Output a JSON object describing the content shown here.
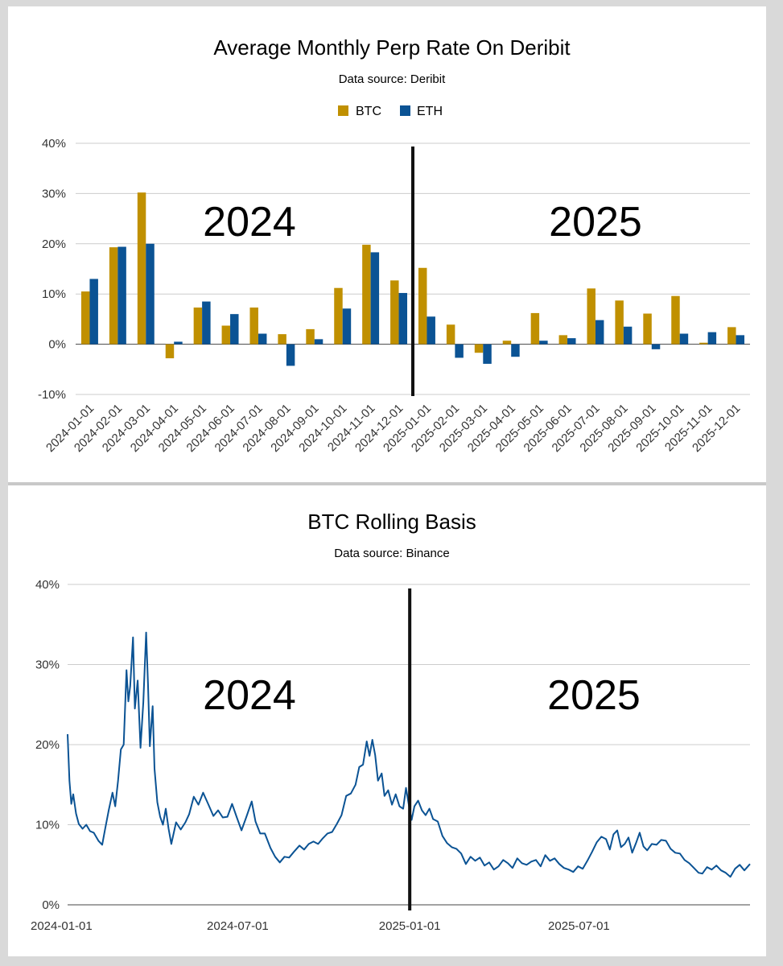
{
  "colors": {
    "btc": "#c09000",
    "eth": "#0b5394",
    "grid": "#cccccc",
    "divider": "#111111"
  },
  "chart_data": [
    {
      "type": "bar",
      "title": "Average Monthly Perp Rate On Deribit",
      "subtitle": "Data source: Deribit",
      "categories": [
        "2024-01-01",
        "2024-02-01",
        "2024-03-01",
        "2024-04-01",
        "2024-05-01",
        "2024-06-01",
        "2024-07-01",
        "2024-08-01",
        "2024-09-01",
        "2024-10-01",
        "2024-11-01",
        "2024-12-01",
        "2025-01-01",
        "2025-02-01",
        "2025-03-01",
        "2025-04-01",
        "2025-05-01",
        "2025-06-01",
        "2025-07-01",
        "2025-08-01",
        "2025-09-01",
        "2025-10-01",
        "2025-11-01",
        "2025-12-01"
      ],
      "series": [
        {
          "name": "BTC",
          "values": [
            10.5,
            19.3,
            30.2,
            -2.8,
            7.3,
            3.7,
            7.3,
            2.0,
            3.0,
            11.2,
            19.8,
            12.7,
            15.2,
            3.9,
            -1.7,
            0.7,
            6.2,
            1.8,
            11.1,
            8.7,
            6.1,
            9.6,
            0.3,
            3.4
          ]
        },
        {
          "name": "ETH",
          "values": [
            13.0,
            19.4,
            20.0,
            0.5,
            8.5,
            6.0,
            2.1,
            -4.3,
            1.0,
            7.1,
            18.3,
            10.2,
            5.5,
            -2.7,
            -3.9,
            -2.5,
            0.7,
            1.2,
            4.8,
            3.5,
            -1.0,
            2.1,
            2.4,
            1.8
          ]
        }
      ],
      "ylim": [
        -10,
        40
      ],
      "yticks": [
        "-10%",
        "0%",
        "10%",
        "20%",
        "30%",
        "40%"
      ],
      "grid": true,
      "legend": "top-center",
      "annotations": [
        "2024",
        "2025"
      ],
      "divider_category": "2025-01-01"
    },
    {
      "type": "line",
      "title": "BTC Rolling Basis",
      "subtitle": "Data source: Binance",
      "x_range": [
        "2024-01-01",
        "2025-12-31"
      ],
      "xticks": [
        "2024-01-01",
        "2024-07-01",
        "2025-01-01",
        "2025-07-01"
      ],
      "ylim": [
        0,
        40
      ],
      "yticks": [
        "0%",
        "10%",
        "20%",
        "30%",
        "40%"
      ],
      "grid": true,
      "annotations": [
        "2024",
        "2025"
      ],
      "divider_date": "2025-01-01",
      "series": [
        {
          "points": [
            [
              "2024-01-01",
              21.3
            ],
            [
              "2024-01-03",
              15.5
            ],
            [
              "2024-01-05",
              12.6
            ],
            [
              "2024-01-07",
              13.8
            ],
            [
              "2024-01-10",
              11.4
            ],
            [
              "2024-01-13",
              10.1
            ],
            [
              "2024-01-17",
              9.5
            ],
            [
              "2024-01-21",
              10.0
            ],
            [
              "2024-01-25",
              9.2
            ],
            [
              "2024-01-29",
              9.0
            ],
            [
              "2024-02-03",
              8.0
            ],
            [
              "2024-02-07",
              7.5
            ],
            [
              "2024-02-10",
              9.4
            ],
            [
              "2024-02-14",
              11.8
            ],
            [
              "2024-02-18",
              14.0
            ],
            [
              "2024-02-21",
              12.3
            ],
            [
              "2024-02-24",
              15.5
            ],
            [
              "2024-02-27",
              19.4
            ],
            [
              "2024-03-01",
              20.0
            ],
            [
              "2024-03-04",
              29.3
            ],
            [
              "2024-03-06",
              25.4
            ],
            [
              "2024-03-08",
              27.3
            ],
            [
              "2024-03-11",
              33.4
            ],
            [
              "2024-03-13",
              24.5
            ],
            [
              "2024-03-16",
              28.0
            ],
            [
              "2024-03-19",
              19.6
            ],
            [
              "2024-03-22",
              25.3
            ],
            [
              "2024-03-25",
              34.0
            ],
            [
              "2024-03-27",
              27.6
            ],
            [
              "2024-03-29",
              19.8
            ],
            [
              "2024-04-01",
              24.8
            ],
            [
              "2024-04-03",
              17.0
            ],
            [
              "2024-04-06",
              12.8
            ],
            [
              "2024-04-09",
              11.0
            ],
            [
              "2024-04-12",
              10.0
            ],
            [
              "2024-04-15",
              12.0
            ],
            [
              "2024-04-18",
              9.5
            ],
            [
              "2024-04-21",
              7.6
            ],
            [
              "2024-04-26",
              10.3
            ],
            [
              "2024-05-01",
              9.4
            ],
            [
              "2024-05-06",
              10.3
            ],
            [
              "2024-05-10",
              11.3
            ],
            [
              "2024-05-15",
              13.5
            ],
            [
              "2024-05-20",
              12.5
            ],
            [
              "2024-05-25",
              14.0
            ],
            [
              "2024-05-30",
              12.7
            ],
            [
              "2024-06-05",
              11.1
            ],
            [
              "2024-06-10",
              11.8
            ],
            [
              "2024-06-15",
              10.9
            ],
            [
              "2024-06-20",
              11.0
            ],
            [
              "2024-06-25",
              12.6
            ],
            [
              "2024-06-30",
              10.9
            ],
            [
              "2024-07-05",
              9.3
            ],
            [
              "2024-07-10",
              10.9
            ],
            [
              "2024-07-16",
              12.9
            ],
            [
              "2024-07-20",
              10.4
            ],
            [
              "2024-07-25",
              8.9
            ],
            [
              "2024-07-30",
              8.9
            ],
            [
              "2024-08-05",
              7.1
            ],
            [
              "2024-08-10",
              6.0
            ],
            [
              "2024-08-15",
              5.3
            ],
            [
              "2024-08-20",
              6.0
            ],
            [
              "2024-08-25",
              5.9
            ],
            [
              "2024-08-30",
              6.6
            ],
            [
              "2024-09-05",
              7.4
            ],
            [
              "2024-09-10",
              6.9
            ],
            [
              "2024-09-15",
              7.6
            ],
            [
              "2024-09-20",
              7.9
            ],
            [
              "2024-09-25",
              7.6
            ],
            [
              "2024-09-30",
              8.3
            ],
            [
              "2024-10-05",
              8.9
            ],
            [
              "2024-10-10",
              9.1
            ],
            [
              "2024-10-15",
              10.1
            ],
            [
              "2024-10-20",
              11.2
            ],
            [
              "2024-10-25",
              13.6
            ],
            [
              "2024-10-30",
              13.9
            ],
            [
              "2024-11-04",
              15.0
            ],
            [
              "2024-11-08",
              17.2
            ],
            [
              "2024-11-12",
              17.5
            ],
            [
              "2024-11-16",
              20.4
            ],
            [
              "2024-11-19",
              18.6
            ],
            [
              "2024-11-22",
              20.6
            ],
            [
              "2024-11-25",
              18.7
            ],
            [
              "2024-11-28",
              15.5
            ],
            [
              "2024-12-02",
              16.4
            ],
            [
              "2024-12-05",
              13.6
            ],
            [
              "2024-12-09",
              14.3
            ],
            [
              "2024-12-13",
              12.5
            ],
            [
              "2024-12-17",
              13.8
            ],
            [
              "2024-12-21",
              12.3
            ],
            [
              "2024-12-25",
              12.0
            ],
            [
              "2024-12-28",
              14.6
            ],
            [
              "2024-12-31",
              12.5
            ],
            [
              "2025-01-03",
              10.6
            ],
            [
              "2025-01-06",
              12.3
            ],
            [
              "2025-01-10",
              13.0
            ],
            [
              "2025-01-14",
              11.8
            ],
            [
              "2025-01-18",
              11.2
            ],
            [
              "2025-01-22",
              12.0
            ],
            [
              "2025-01-26",
              10.7
            ],
            [
              "2025-01-31",
              10.4
            ],
            [
              "2025-02-05",
              8.6
            ],
            [
              "2025-02-10",
              7.7
            ],
            [
              "2025-02-15",
              7.2
            ],
            [
              "2025-02-20",
              7.0
            ],
            [
              "2025-02-25",
              6.4
            ],
            [
              "2025-03-02",
              5.1
            ],
            [
              "2025-03-07",
              6.0
            ],
            [
              "2025-03-12",
              5.5
            ],
            [
              "2025-03-17",
              5.9
            ],
            [
              "2025-03-22",
              4.9
            ],
            [
              "2025-03-27",
              5.3
            ],
            [
              "2025-04-01",
              4.4
            ],
            [
              "2025-04-06",
              4.8
            ],
            [
              "2025-04-11",
              5.6
            ],
            [
              "2025-04-16",
              5.2
            ],
            [
              "2025-04-21",
              4.6
            ],
            [
              "2025-04-26",
              5.8
            ],
            [
              "2025-05-01",
              5.2
            ],
            [
              "2025-05-06",
              5.0
            ],
            [
              "2025-05-11",
              5.4
            ],
            [
              "2025-05-16",
              5.6
            ],
            [
              "2025-05-21",
              4.8
            ],
            [
              "2025-05-26",
              6.2
            ],
            [
              "2025-05-31",
              5.5
            ],
            [
              "2025-06-05",
              5.8
            ],
            [
              "2025-06-10",
              5.1
            ],
            [
              "2025-06-15",
              4.6
            ],
            [
              "2025-06-20",
              4.4
            ],
            [
              "2025-06-25",
              4.1
            ],
            [
              "2025-06-30",
              4.8
            ],
            [
              "2025-07-05",
              4.5
            ],
            [
              "2025-07-10",
              5.5
            ],
            [
              "2025-07-15",
              6.6
            ],
            [
              "2025-07-20",
              7.8
            ],
            [
              "2025-07-25",
              8.5
            ],
            [
              "2025-07-30",
              8.2
            ],
            [
              "2025-08-03",
              6.9
            ],
            [
              "2025-08-07",
              8.8
            ],
            [
              "2025-08-11",
              9.3
            ],
            [
              "2025-08-15",
              7.2
            ],
            [
              "2025-08-19",
              7.6
            ],
            [
              "2025-08-23",
              8.4
            ],
            [
              "2025-08-27",
              6.5
            ],
            [
              "2025-08-31",
              7.7
            ],
            [
              "2025-09-04",
              9.0
            ],
            [
              "2025-09-08",
              7.3
            ],
            [
              "2025-09-12",
              6.8
            ],
            [
              "2025-09-17",
              7.6
            ],
            [
              "2025-09-22",
              7.5
            ],
            [
              "2025-09-27",
              8.1
            ],
            [
              "2025-10-02",
              8.0
            ],
            [
              "2025-10-07",
              7.0
            ],
            [
              "2025-10-12",
              6.5
            ],
            [
              "2025-10-17",
              6.4
            ],
            [
              "2025-10-22",
              5.6
            ],
            [
              "2025-10-27",
              5.2
            ],
            [
              "2025-11-01",
              4.6
            ],
            [
              "2025-11-06",
              4.0
            ],
            [
              "2025-11-10",
              3.9
            ],
            [
              "2025-11-15",
              4.7
            ],
            [
              "2025-11-20",
              4.4
            ],
            [
              "2025-11-25",
              4.9
            ],
            [
              "2025-11-30",
              4.3
            ],
            [
              "2025-12-05",
              4.0
            ],
            [
              "2025-12-10",
              3.5
            ],
            [
              "2025-12-15",
              4.5
            ],
            [
              "2025-12-20",
              5.0
            ],
            [
              "2025-12-25",
              4.3
            ],
            [
              "2025-12-31",
              5.1
            ]
          ]
        }
      ]
    }
  ]
}
